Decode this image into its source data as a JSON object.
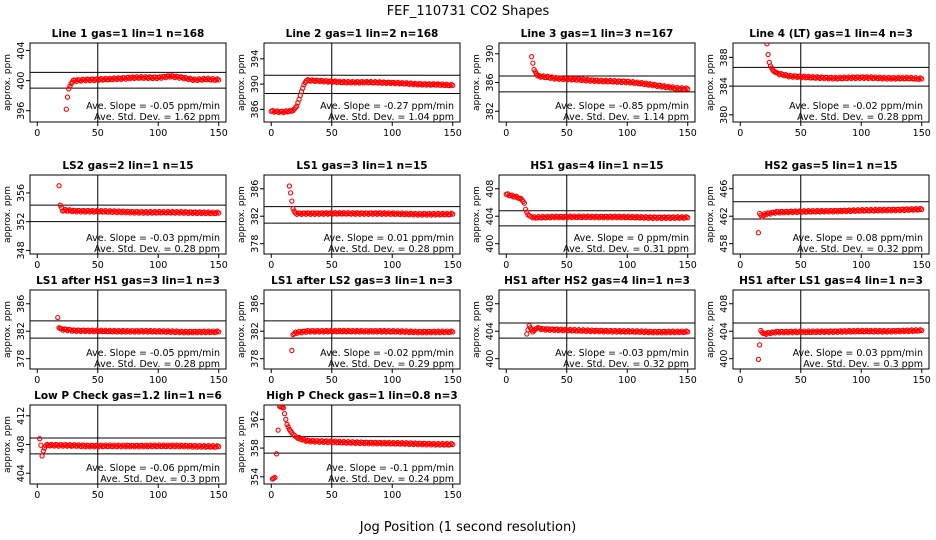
{
  "title": "FEF_110731  CO2 Shapes",
  "xlabel": "Jog Position (1 second resolution)",
  "colors": {
    "points": "#ff0000",
    "lines": "#000000"
  },
  "chart_data": [
    {
      "type": "scatter",
      "title": "Line 1 gas=1 lin=1 n=168",
      "ylabel": "approx. ppm",
      "xlim": [
        -6,
        156
      ],
      "xticks": [
        0,
        50,
        100,
        150
      ],
      "ylim": [
        394.5,
        405
      ],
      "yticks": [
        396,
        400,
        404
      ],
      "hlines": [
        399.0,
        401.1
      ],
      "vline": 50,
      "note": [
        "Ave. Slope = -0.05  ppm/min",
        "Ave. Std. Dev. = 1.62  ppm"
      ],
      "points": [
        [
          24,
          396.2
        ],
        [
          25,
          397.8
        ],
        [
          26,
          398.9
        ],
        [
          28,
          399.6
        ],
        [
          30,
          400.0
        ],
        [
          40,
          400.1
        ],
        [
          60,
          400.2
        ],
        [
          80,
          400.4
        ],
        [
          100,
          400.4
        ],
        [
          110,
          400.6
        ],
        [
          120,
          400.4
        ],
        [
          130,
          400.1
        ],
        [
          140,
          400.2
        ],
        [
          150,
          400.1
        ]
      ]
    },
    {
      "type": "scatter",
      "title": "Line 2 gas=1 lin=2 n=168",
      "ylabel": "approx. ppm",
      "xlim": [
        -6,
        156
      ],
      "xticks": [
        0,
        50,
        100,
        150
      ],
      "ylim": [
        384,
        396.5
      ],
      "yticks": [
        386,
        390,
        394
      ],
      "hlines": [
        388.5,
        391.4
      ],
      "vline": 50,
      "note": [
        "Ave. Slope = -0.27  ppm/min",
        "Ave. Std. Dev. = 1.04  ppm"
      ],
      "points": [
        [
          0,
          385.7
        ],
        [
          10,
          385.6
        ],
        [
          18,
          385.8
        ],
        [
          21,
          386.5
        ],
        [
          23,
          387.6
        ],
        [
          25,
          388.8
        ],
        [
          27,
          389.9
        ],
        [
          29,
          390.6
        ],
        [
          40,
          390.5
        ],
        [
          60,
          390.3
        ],
        [
          80,
          390.3
        ],
        [
          100,
          390.2
        ],
        [
          120,
          390.0
        ],
        [
          140,
          389.9
        ],
        [
          150,
          389.8
        ]
      ]
    },
    {
      "type": "scatter",
      "title": "Line 3 gas=1 lin=3 n=167",
      "ylabel": "approx. ppm",
      "xlim": [
        -6,
        156
      ],
      "xticks": [
        0,
        50,
        100,
        150
      ],
      "ylim": [
        380.5,
        391.5
      ],
      "yticks": [
        382,
        386,
        390
      ],
      "hlines": [
        384.7,
        386.9
      ],
      "vline": 50,
      "note": [
        "Ave. Slope = -0.85  ppm/min",
        "Ave. Std. Dev. = 1.14  ppm"
      ],
      "points": [
        [
          21,
          389.6
        ],
        [
          23,
          387.8
        ],
        [
          26,
          386.9
        ],
        [
          40,
          386.6
        ],
        [
          60,
          386.4
        ],
        [
          80,
          386.2
        ],
        [
          100,
          386.1
        ],
        [
          120,
          385.7
        ],
        [
          140,
          385.2
        ],
        [
          150,
          385.1
        ]
      ]
    },
    {
      "type": "scatter",
      "title": "Line 4 (LT) gas=1 lin=4 n=3",
      "ylabel": "approx. ppm",
      "xlim": [
        -6,
        156
      ],
      "xticks": [
        0,
        50,
        100,
        150
      ],
      "ylim": [
        379,
        390
      ],
      "yticks": [
        380,
        384,
        388
      ],
      "hlines": [
        384.0,
        386.6
      ],
      "vline": 50,
      "note": [
        "Ave. Slope = -0.02  ppm/min",
        "Ave. Std. Dev. = 0.28  ppm"
      ],
      "points": [
        [
          22,
          389.9
        ],
        [
          23,
          388.4
        ],
        [
          24,
          387.3
        ],
        [
          25,
          386.8
        ],
        [
          27,
          386.2
        ],
        [
          30,
          385.8
        ],
        [
          40,
          385.4
        ],
        [
          60,
          385.2
        ],
        [
          80,
          385.1
        ],
        [
          100,
          385.2
        ],
        [
          120,
          385.1
        ],
        [
          140,
          385.1
        ],
        [
          150,
          385.0
        ]
      ]
    },
    {
      "type": "scatter",
      "title": "LS2 gas=2 lin=1 n=15",
      "ylabel": "approx. ppm",
      "xlim": [
        -6,
        156
      ],
      "xticks": [
        0,
        50,
        100,
        150
      ],
      "ylim": [
        347.5,
        358.5
      ],
      "yticks": [
        348,
        352,
        356
      ],
      "hlines": [
        352.0,
        354.3
      ],
      "vline": 50,
      "note": [
        "Ave. Slope = -0.03  ppm/min",
        "Ave. Std. Dev. = 0.28  ppm"
      ],
      "points": [
        [
          18,
          357.0
        ],
        [
          19,
          354.3
        ],
        [
          21,
          353.6
        ],
        [
          30,
          353.5
        ],
        [
          60,
          353.4
        ],
        [
          90,
          353.3
        ],
        [
          120,
          353.3
        ],
        [
          150,
          353.2
        ]
      ]
    },
    {
      "type": "scatter",
      "title": "LS1 gas=3 lin=1 n=15",
      "ylabel": "approx. ppm",
      "xlim": [
        -6,
        156
      ],
      "xticks": [
        0,
        50,
        100,
        150
      ],
      "ylim": [
        376.5,
        388
      ],
      "yticks": [
        378,
        382,
        386
      ],
      "hlines": [
        381.0,
        383.4
      ],
      "vline": 50,
      "note": [
        "Ave. Slope = 0.01  ppm/min",
        "Ave. Std. Dev. = 0.28  ppm"
      ],
      "points": [
        [
          15,
          386.4
        ],
        [
          16,
          385.4
        ],
        [
          17,
          384.2
        ],
        [
          18,
          383.1
        ],
        [
          20,
          382.4
        ],
        [
          30,
          382.4
        ],
        [
          60,
          382.4
        ],
        [
          90,
          382.4
        ],
        [
          120,
          382.3
        ],
        [
          150,
          382.3
        ]
      ]
    },
    {
      "type": "scatter",
      "title": "HS1 gas=4 lin=1 n=15",
      "ylabel": "approx. ppm",
      "xlim": [
        -6,
        156
      ],
      "xticks": [
        0,
        50,
        100,
        150
      ],
      "ylim": [
        398.5,
        410
      ],
      "yticks": [
        400,
        404,
        408
      ],
      "hlines": [
        402.6,
        404.8
      ],
      "vline": 50,
      "note": [
        "Ave. Slope = 0  ppm/min",
        "Ave. Std. Dev. = 0.31  ppm"
      ],
      "points": [
        [
          0,
          407.2
        ],
        [
          6,
          406.9
        ],
        [
          12,
          406.6
        ],
        [
          15,
          405.9
        ],
        [
          16,
          405.0
        ],
        [
          18,
          404.2
        ],
        [
          22,
          403.8
        ],
        [
          40,
          403.9
        ],
        [
          60,
          403.9
        ],
        [
          90,
          403.9
        ],
        [
          120,
          403.8
        ],
        [
          150,
          403.8
        ]
      ]
    },
    {
      "type": "scatter",
      "title": "HS2 gas=5 lin=1 n=15",
      "ylabel": "approx. ppm",
      "xlim": [
        -6,
        156
      ],
      "xticks": [
        0,
        50,
        100,
        150
      ],
      "ylim": [
        456.5,
        468
      ],
      "yticks": [
        458,
        462,
        466
      ],
      "hlines": [
        461.6,
        464.1
      ],
      "vline": 50,
      "note": [
        "Ave. Slope = 0.08  ppm/min",
        "Ave. Std. Dev. = 0.32  ppm"
      ],
      "points": [
        [
          15,
          459.6
        ],
        [
          16,
          462.4
        ],
        [
          18,
          461.9
        ],
        [
          20,
          462.3
        ],
        [
          30,
          462.6
        ],
        [
          60,
          462.7
        ],
        [
          90,
          462.8
        ],
        [
          120,
          462.9
        ],
        [
          150,
          463.0
        ]
      ]
    },
    {
      "type": "scatter",
      "title": "LS1 after HS1 gas=3 lin=1 n=3",
      "ylabel": "approx. ppm",
      "xlim": [
        -6,
        156
      ],
      "xticks": [
        0,
        50,
        100,
        150
      ],
      "ylim": [
        376.5,
        388
      ],
      "yticks": [
        378,
        382,
        386
      ],
      "hlines": [
        381.0,
        383.5
      ],
      "vline": 50,
      "note": [
        "Ave. Slope = -0.05  ppm/min",
        "Ave. Std. Dev. = 0.28  ppm"
      ],
      "points": [
        [
          17,
          384.0
        ],
        [
          18,
          382.5
        ],
        [
          20,
          382.3
        ],
        [
          30,
          382.1
        ],
        [
          60,
          382.0
        ],
        [
          90,
          382.0
        ],
        [
          120,
          381.9
        ],
        [
          150,
          381.9
        ]
      ]
    },
    {
      "type": "scatter",
      "title": "LS1 after LS2 gas=3 lin=1 n=3",
      "ylabel": "approx. ppm",
      "xlim": [
        -6,
        156
      ],
      "xticks": [
        0,
        50,
        100,
        150
      ],
      "ylim": [
        376.5,
        388
      ],
      "yticks": [
        378,
        382,
        386
      ],
      "hlines": [
        381.0,
        383.5
      ],
      "vline": 50,
      "note": [
        "Ave. Slope = -0.02  ppm/min",
        "Ave. Std. Dev. = 0.29  ppm"
      ],
      "points": [
        [
          17,
          379.2
        ],
        [
          18,
          381.5
        ],
        [
          20,
          381.8
        ],
        [
          30,
          382.0
        ],
        [
          60,
          382.0
        ],
        [
          90,
          382.0
        ],
        [
          120,
          381.9
        ],
        [
          150,
          381.9
        ]
      ]
    },
    {
      "type": "scatter",
      "title": "HS1 after HS2 gas=4 lin=1 n=3",
      "ylabel": "approx. ppm",
      "xlim": [
        -6,
        156
      ],
      "xticks": [
        0,
        50,
        100,
        150
      ],
      "ylim": [
        398.5,
        410
      ],
      "yticks": [
        400,
        404,
        408
      ],
      "hlines": [
        403.0,
        405.2
      ],
      "vline": 50,
      "note": [
        "Ave. Slope = -0.03  ppm/min",
        "Ave. Std. Dev. = 0.32  ppm"
      ],
      "points": [
        [
          17,
          403.6
        ],
        [
          19,
          404.8
        ],
        [
          22,
          403.9
        ],
        [
          25,
          404.5
        ],
        [
          30,
          404.3
        ],
        [
          60,
          404.1
        ],
        [
          90,
          404.0
        ],
        [
          120,
          403.9
        ],
        [
          150,
          403.9
        ]
      ]
    },
    {
      "type": "scatter",
      "title": "HS1 after LS1 gas=4 lin=1 n=3",
      "ylabel": "approx. ppm",
      "xlim": [
        -6,
        156
      ],
      "xticks": [
        0,
        50,
        100,
        150
      ],
      "ylim": [
        398.5,
        410
      ],
      "yticks": [
        400,
        404,
        408
      ],
      "hlines": [
        403.0,
        405.2
      ],
      "vline": 50,
      "note": [
        "Ave. Slope = 0.03  ppm/min",
        "Ave. Std. Dev. = 0.3  ppm"
      ],
      "points": [
        [
          15,
          399.9
        ],
        [
          17,
          404.1
        ],
        [
          19,
          403.6
        ],
        [
          30,
          403.9
        ],
        [
          60,
          403.9
        ],
        [
          90,
          404.0
        ],
        [
          120,
          404.0
        ],
        [
          150,
          404.1
        ]
      ]
    },
    {
      "type": "scatter",
      "title": "Low P Check gas=1.2 lin=1 n=6",
      "ylabel": "approx. ppm",
      "xlim": [
        -6,
        156
      ],
      "xticks": [
        0,
        50,
        100,
        150
      ],
      "ylim": [
        402.5,
        413.5
      ],
      "yticks": [
        404,
        408,
        412
      ],
      "hlines": [
        406.7,
        408.9
      ],
      "vline": 50,
      "note": [
        "Ave. Slope = -0.06  ppm/min",
        "Ave. Std. Dev. = 0.3  ppm"
      ],
      "points": [
        [
          2,
          408.8
        ],
        [
          3,
          407.9
        ],
        [
          4,
          406.4
        ],
        [
          5,
          407.1
        ],
        [
          7,
          407.9
        ],
        [
          20,
          407.9
        ],
        [
          40,
          407.8
        ],
        [
          60,
          407.8
        ],
        [
          90,
          407.8
        ],
        [
          120,
          407.8
        ],
        [
          150,
          407.7
        ]
      ]
    },
    {
      "type": "scatter",
      "title": "High P Check gas=1 lin=0.8 n=3",
      "ylabel": "approx. ppm",
      "xlim": [
        -6,
        156
      ],
      "xticks": [
        0,
        50,
        100,
        150
      ],
      "ylim": [
        353,
        364
      ],
      "yticks": [
        354,
        358,
        362
      ],
      "hlines": [
        357.3,
        359.6
      ],
      "vline": 50,
      "note": [
        "Ave. Slope = -0.1  ppm/min",
        "Ave. Std. Dev. = 0.24  ppm"
      ],
      "points": [
        [
          1,
          353.7
        ],
        [
          3,
          353.9
        ],
        [
          7,
          363.8
        ],
        [
          10,
          363.6
        ],
        [
          12,
          362.0
        ],
        [
          13,
          361.3
        ],
        [
          15,
          360.6
        ],
        [
          18,
          359.9
        ],
        [
          22,
          359.4
        ],
        [
          30,
          359.0
        ],
        [
          60,
          358.8
        ],
        [
          90,
          358.7
        ],
        [
          120,
          358.6
        ],
        [
          150,
          358.5
        ]
      ]
    }
  ]
}
